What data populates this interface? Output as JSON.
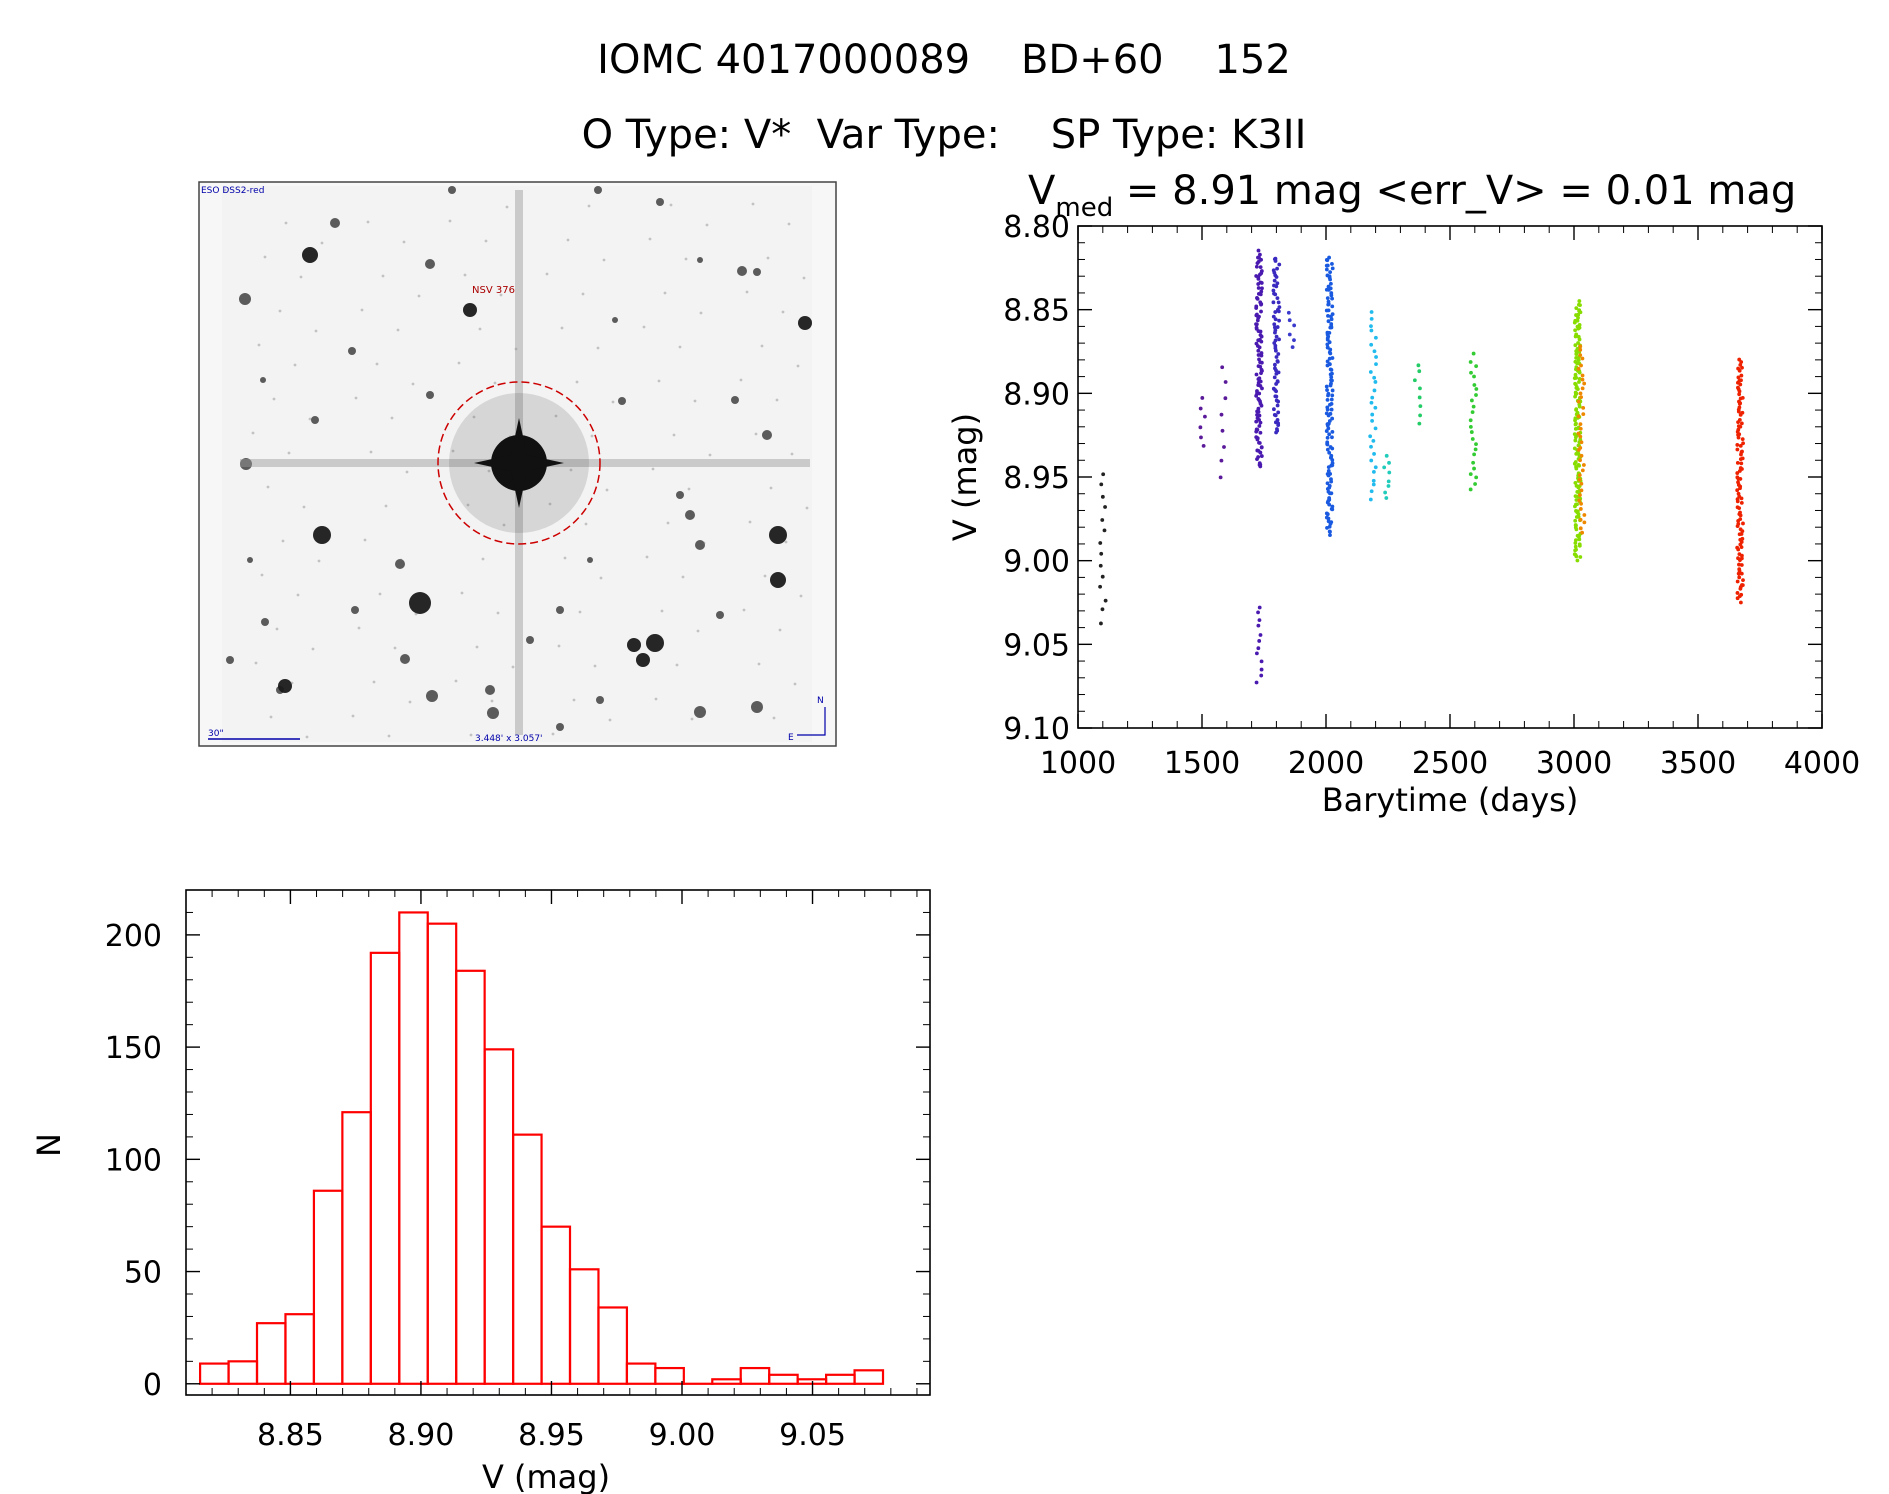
{
  "header": {
    "title_line1": "IOMC 4017000089    BD+60    152",
    "title_line2": "O Type: V*  Var Type:    SP Type: K3II"
  },
  "image_panel": {
    "survey_label": "ESO DSS2-red",
    "object_label": "NSV 376",
    "scale_label": "30\"",
    "fov_label": "3.448' x 3.057'",
    "north_label": "N",
    "east_label": "E"
  },
  "colors": {
    "histogram": "#ff0000",
    "marker": "#cc0000",
    "axis": "#000000",
    "image_label": "#0000aa"
  },
  "chart_data": [
    {
      "type": "scatter",
      "title_prefix": "V",
      "title_sub": "med",
      "title_rest": " = 8.91 mag <err_V> = 0.01 mag",
      "xlabel": "Barytime (days)",
      "ylabel": "V (mag)",
      "xlim": [
        1000,
        4000
      ],
      "ylim": [
        9.1,
        8.8
      ],
      "xticks": [
        "1000",
        "1500",
        "2000",
        "2500",
        "3000",
        "3500",
        "4000"
      ],
      "yticks": [
        "8.80",
        "8.85",
        "8.90",
        "8.95",
        "9.00",
        "9.05",
        "9.10"
      ],
      "groups": [
        {
          "x": 1100,
          "ymin": 8.945,
          "ymax": 9.04,
          "color": "#222222",
          "n": 14
        },
        {
          "x": 1500,
          "ymin": 8.9,
          "ymax": 8.935,
          "color": "#5a1a9a",
          "n": 6
        },
        {
          "x": 1585,
          "ymin": 8.88,
          "ymax": 8.955,
          "color": "#5a1a9a",
          "n": 8
        },
        {
          "x": 1730,
          "ymin": 8.815,
          "ymax": 8.945,
          "color": "#4a1ab0",
          "n": 110
        },
        {
          "x": 1730,
          "ymin": 9.025,
          "ymax": 9.075,
          "color": "#4a1ab0",
          "n": 12
        },
        {
          "x": 1800,
          "ymin": 8.818,
          "ymax": 8.925,
          "color": "#3a2ac0",
          "n": 70
        },
        {
          "x": 1860,
          "ymin": 8.85,
          "ymax": 8.875,
          "color": "#3a3acc",
          "n": 6
        },
        {
          "x": 2015,
          "ymin": 8.818,
          "ymax": 8.985,
          "color": "#1a5ae0",
          "n": 140
        },
        {
          "x": 2190,
          "ymin": 8.85,
          "ymax": 8.965,
          "color": "#22bbee",
          "n": 30
        },
        {
          "x": 2245,
          "ymin": 8.935,
          "ymax": 8.965,
          "color": "#22ccbb",
          "n": 8
        },
        {
          "x": 2370,
          "ymin": 8.88,
          "ymax": 8.92,
          "color": "#22cc66",
          "n": 8
        },
        {
          "x": 2595,
          "ymin": 8.875,
          "ymax": 8.96,
          "color": "#33cc33",
          "n": 24
        },
        {
          "x": 3015,
          "ymin": 8.845,
          "ymax": 9.0,
          "color": "#88dd00",
          "n": 150
        },
        {
          "x": 3030,
          "ymin": 8.87,
          "ymax": 8.985,
          "color": "#ee8800",
          "n": 40
        },
        {
          "x": 3670,
          "ymin": 8.88,
          "ymax": 9.025,
          "color": "#ee2200",
          "n": 110
        }
      ]
    },
    {
      "type": "bar",
      "xlabel": "V (mag)",
      "ylabel": "N",
      "xlim": [
        8.81,
        9.095
      ],
      "ylim": [
        -5,
        220
      ],
      "xticks": [
        "8.85",
        "8.90",
        "8.95",
        "9.00",
        "9.05"
      ],
      "yticks": [
        "0",
        "50",
        "100",
        "150",
        "200"
      ],
      "bin_width": 0.0109,
      "bin_starts": [
        8.8154,
        8.8263,
        8.8372,
        8.8481,
        8.859,
        8.8699,
        8.8808,
        8.8917,
        8.9026,
        8.9135,
        8.9244,
        8.9353,
        8.9462,
        8.9571,
        8.968,
        8.9789,
        8.9898,
        9.0007,
        9.0116,
        9.0225,
        9.0334,
        9.0443,
        9.0552,
        9.0661
      ],
      "values": [
        9,
        10,
        27,
        31,
        86,
        121,
        192,
        210,
        205,
        184,
        149,
        111,
        70,
        51,
        34,
        9,
        7,
        0,
        2,
        7,
        4,
        2,
        4,
        6
      ]
    }
  ]
}
